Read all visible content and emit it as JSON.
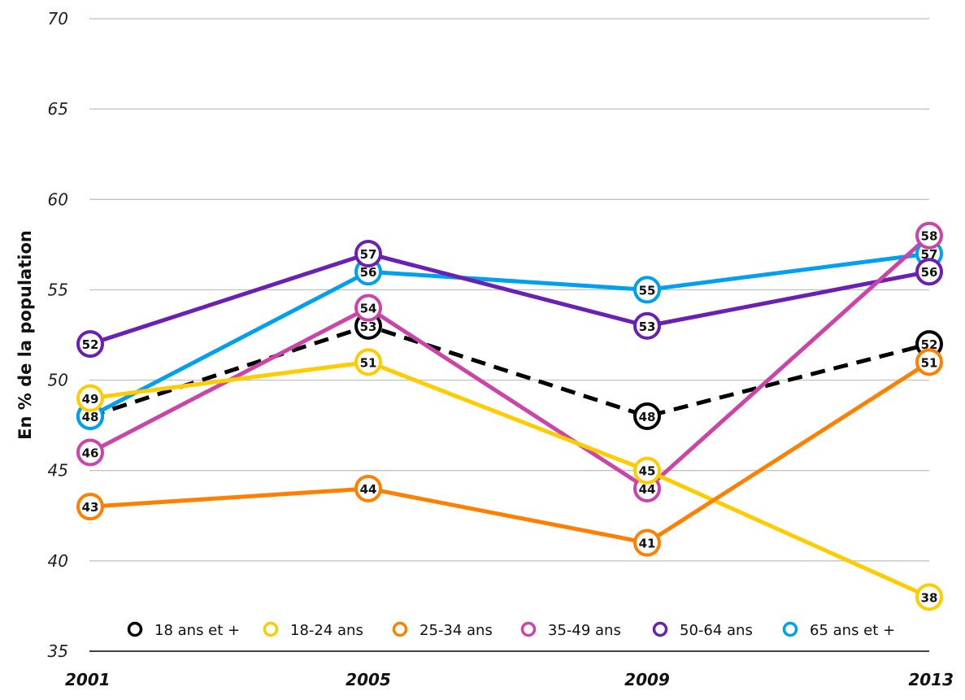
{
  "chart_data": {
    "type": "line",
    "categories": [
      "2001",
      "2005",
      "2009",
      "2013"
    ],
    "ylabel": "En % de la population",
    "xlabel": "",
    "ylim": [
      35,
      70
    ],
    "yticks": [
      35,
      40,
      45,
      50,
      55,
      60,
      65,
      70
    ],
    "grid": true,
    "legend_position": "bottom",
    "series": [
      {
        "name": "18 ans et +",
        "color": "#000000",
        "dashed": true,
        "values": [
          48,
          53,
          48,
          52
        ]
      },
      {
        "name": "18-24 ans",
        "color": "#FFCC00",
        "dashed": false,
        "values": [
          49,
          51,
          45,
          38
        ]
      },
      {
        "name": "25-34 ans",
        "color": "#FF8000",
        "dashed": false,
        "values": [
          43,
          44,
          41,
          51
        ]
      },
      {
        "name": "35-49 ans",
        "color": "#CC44AA",
        "dashed": false,
        "values": [
          46,
          54,
          44,
          58
        ]
      },
      {
        "name": "50-64 ans",
        "color": "#6A1FB5",
        "dashed": false,
        "values": [
          52,
          57,
          53,
          56
        ]
      },
      {
        "name": "65 ans et +",
        "color": "#00A0F0",
        "dashed": false,
        "values": [
          48,
          56,
          55,
          57
        ]
      }
    ]
  }
}
